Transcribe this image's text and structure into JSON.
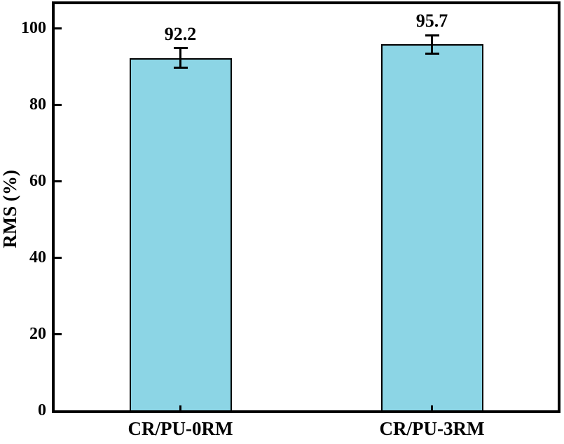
{
  "chart_data": {
    "type": "bar",
    "title": "",
    "categories": [
      "CR/PU-0RM",
      "CR/PU-3RM"
    ],
    "values": [
      92.2,
      95.7
    ],
    "errors": [
      2.5,
      2.4
    ],
    "value_labels": [
      "92.2",
      "95.7"
    ],
    "xlabel": "",
    "ylabel": "RMS (%)",
    "ylim": [
      0,
      100
    ],
    "yticks": [
      0,
      20,
      40,
      60,
      80,
      100
    ],
    "grid": false,
    "legend": "none",
    "colors": {
      "bar_fill": "#8cd5e5",
      "bar_border": "#000000",
      "axis": "#000000",
      "text": "#000000",
      "background": "#ffffff"
    }
  }
}
